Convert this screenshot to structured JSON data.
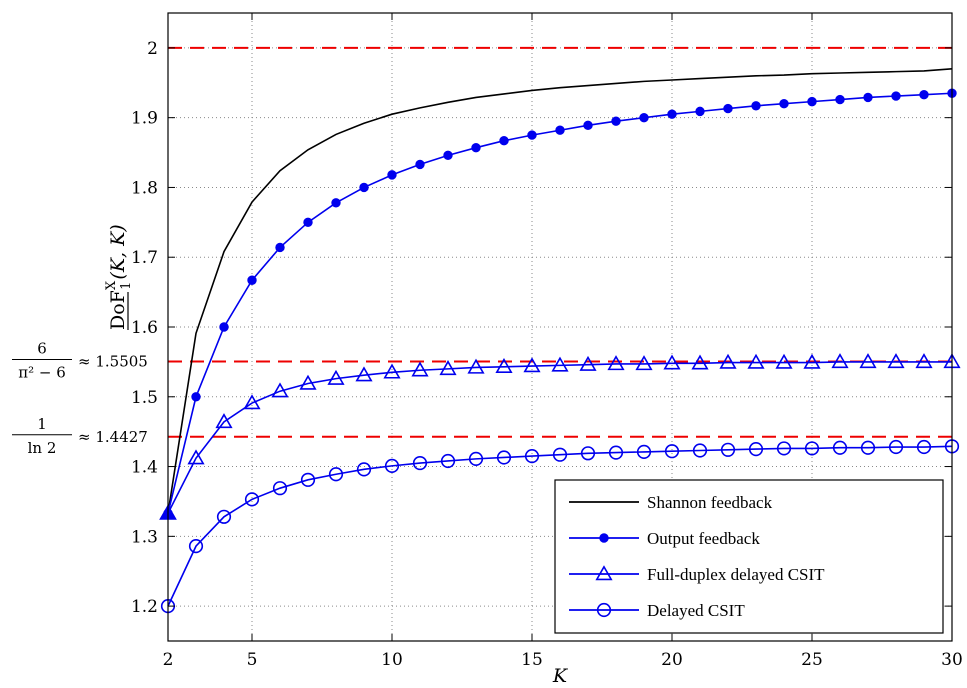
{
  "chart_data": {
    "type": "line",
    "xlabel": "K",
    "ylabel_parts": {
      "base": "DoF",
      "sup": "X",
      "sub": "1",
      "args": "(K, K)"
    },
    "xlim": [
      2,
      30
    ],
    "ylim": [
      1.15,
      2.05
    ],
    "xticks": [
      2,
      5,
      10,
      15,
      20,
      25,
      30
    ],
    "yticks": [
      1.2,
      1.3,
      1.4,
      1.5,
      1.6,
      1.7,
      1.8,
      1.9,
      2
    ],
    "grid": true,
    "legend_position": "bottom-right",
    "x": [
      2,
      3,
      4,
      5,
      6,
      7,
      8,
      9,
      10,
      11,
      12,
      13,
      14,
      15,
      16,
      17,
      18,
      19,
      20,
      21,
      22,
      23,
      24,
      25,
      26,
      27,
      28,
      29,
      30
    ],
    "series": [
      {
        "name": "Shannon feedback",
        "color": "#000000",
        "marker": "none",
        "values": [
          1.333,
          1.591,
          1.708,
          1.779,
          1.824,
          1.854,
          1.876,
          1.892,
          1.905,
          1.914,
          1.922,
          1.929,
          1.934,
          1.939,
          1.943,
          1.946,
          1.949,
          1.952,
          1.954,
          1.956,
          1.958,
          1.96,
          1.961,
          1.963,
          1.964,
          1.965,
          1.966,
          1.967,
          1.97
        ]
      },
      {
        "name": "Output feedback",
        "color": "#0000ee",
        "marker": "dot",
        "values": [
          1.333,
          1.5,
          1.6,
          1.667,
          1.714,
          1.75,
          1.778,
          1.8,
          1.818,
          1.833,
          1.846,
          1.857,
          1.867,
          1.875,
          1.882,
          1.889,
          1.895,
          1.9,
          1.905,
          1.909,
          1.913,
          1.917,
          1.92,
          1.923,
          1.926,
          1.929,
          1.931,
          1.933,
          1.935
        ]
      },
      {
        "name": "Full-duplex delayed CSIT",
        "color": "#0000ee",
        "marker": "triangle",
        "values": [
          1.333,
          1.412,
          1.464,
          1.491,
          1.508,
          1.519,
          1.526,
          1.531,
          1.535,
          1.538,
          1.54,
          1.542,
          1.543,
          1.544,
          1.545,
          1.546,
          1.547,
          1.547,
          1.548,
          1.548,
          1.549,
          1.549,
          1.549,
          1.549,
          1.55,
          1.55,
          1.55,
          1.55,
          1.55
        ]
      },
      {
        "name": "Delayed CSIT",
        "color": "#0000ee",
        "marker": "circle",
        "values": [
          1.2,
          1.286,
          1.328,
          1.353,
          1.369,
          1.381,
          1.389,
          1.396,
          1.401,
          1.405,
          1.408,
          1.411,
          1.413,
          1.415,
          1.417,
          1.419,
          1.42,
          1.421,
          1.422,
          1.423,
          1.424,
          1.425,
          1.426,
          1.426,
          1.427,
          1.427,
          1.428,
          1.428,
          1.429
        ]
      }
    ],
    "reference_lines": [
      {
        "y": 2.0,
        "color": "#ee0000",
        "style": "dashed"
      },
      {
        "y": 1.5505,
        "color": "#ee0000",
        "style": "dashed",
        "label": {
          "num": "6",
          "den": "π² − 6",
          "approx": "≈ 1.5505"
        }
      },
      {
        "y": 1.4427,
        "color": "#ee0000",
        "style": "dashed",
        "label": {
          "num": "1",
          "den": "ln 2",
          "approx": "≈ 1.4427"
        }
      }
    ]
  }
}
